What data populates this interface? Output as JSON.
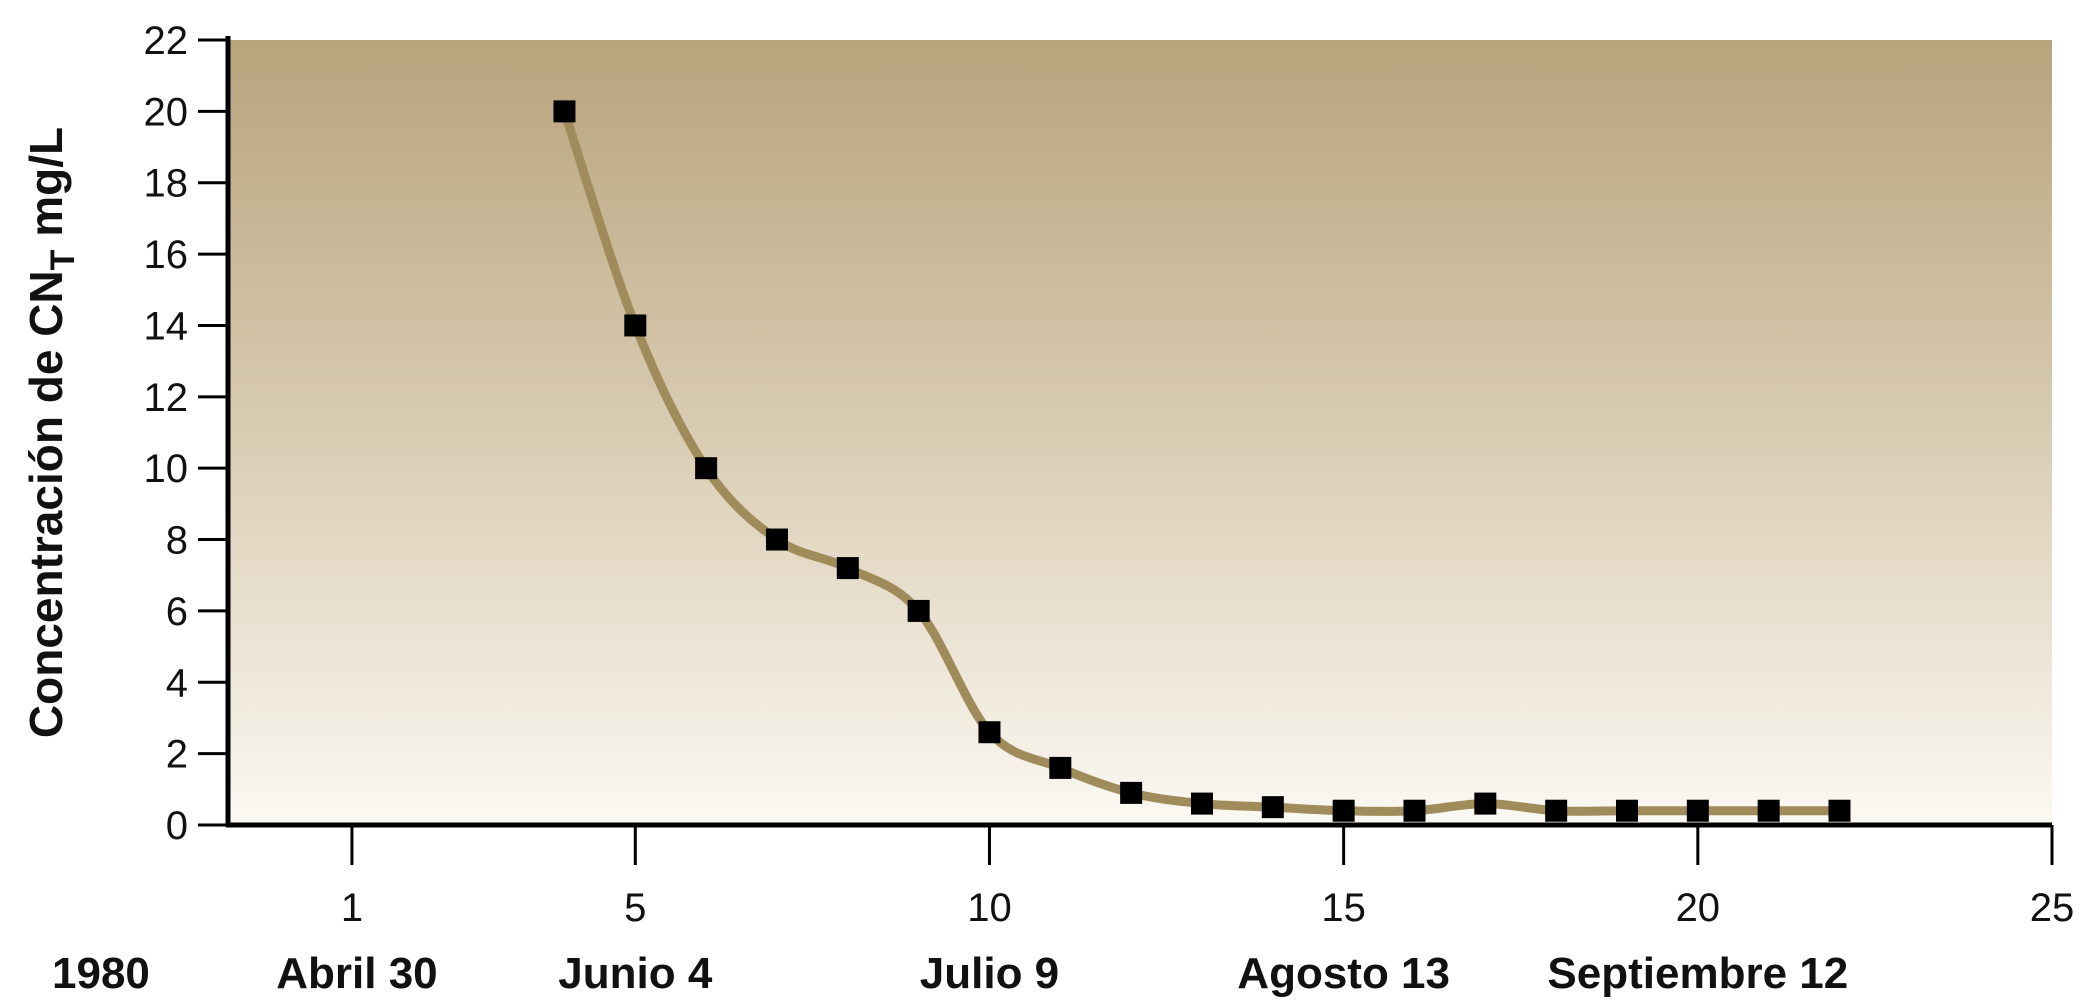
{
  "chart_data": {
    "type": "line",
    "title": "",
    "ylabel": {
      "main": "Concentración de CN",
      "subscript": "T",
      "unit": " mg/L"
    },
    "xlabel": "",
    "xlim": [
      0,
      25
    ],
    "ylim": [
      0,
      22
    ],
    "x_ticks": [
      1,
      5,
      10,
      15,
      20,
      25
    ],
    "y_ticks": [
      0,
      2,
      4,
      6,
      8,
      10,
      12,
      14,
      16,
      18,
      20,
      22
    ],
    "date_labels": [
      {
        "x": 1,
        "text": "Abril 30"
      },
      {
        "x": 5,
        "text": "Junio 4"
      },
      {
        "x": 10,
        "text": "Julio 9"
      },
      {
        "x": 15,
        "text": "Agosto 13"
      },
      {
        "x": 20,
        "text": "Septiembre 12"
      }
    ],
    "year_label": "1980",
    "series": [
      {
        "x": [
          4,
          5,
          6,
          7,
          8,
          9,
          10,
          11,
          12,
          13,
          14,
          15,
          16,
          17,
          18,
          19,
          20,
          21,
          22
        ],
        "y": [
          20,
          14,
          10,
          8,
          7.2,
          6,
          2.6,
          1.6,
          0.9,
          0.6,
          0.5,
          0.4,
          0.4,
          0.6,
          0.4,
          0.4,
          0.4,
          0.4,
          0.4
        ]
      }
    ],
    "colors": {
      "line": "#a08c5a",
      "marker": "#000000",
      "background_top": "#b8a47c",
      "background_mid": "#ddd0b8",
      "background_bottom": "#fbf9f3",
      "axis": "#000000"
    },
    "grid": false
  }
}
